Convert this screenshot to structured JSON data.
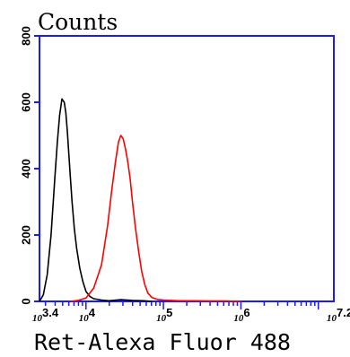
{
  "chart_data": {
    "type": "line",
    "title": "Counts",
    "xlabel": "Ret-Alexa Fluor 488",
    "ylabel": "",
    "x_scale": "log10",
    "xlim": [
      3.4,
      7.2
    ],
    "ylim": [
      0,
      800
    ],
    "yticks": [
      0,
      200,
      400,
      600,
      800
    ],
    "ytick_labels": [
      "0",
      "200",
      "400",
      "600",
      "800"
    ],
    "xtick_labels": [
      {
        "base": "10",
        "exp": "3.4",
        "value": 3.4
      },
      {
        "base": "10",
        "exp": "4",
        "value": 4
      },
      {
        "base": "10",
        "exp": "5",
        "value": 5
      },
      {
        "base": "10",
        "exp": "6",
        "value": 6
      },
      {
        "base": "10",
        "exp": "7.2",
        "value": 7.2
      }
    ],
    "axis_color": "#1a1aff",
    "series": [
      {
        "color": "#000000",
        "x": [
          3.4,
          3.45,
          3.5,
          3.55,
          3.6,
          3.63,
          3.66,
          3.69,
          3.72,
          3.74,
          3.76,
          3.78,
          3.8,
          3.82,
          3.85,
          3.88,
          3.92,
          3.96,
          4.0,
          4.05,
          4.1,
          4.2,
          4.3,
          4.45,
          4.6,
          4.75,
          4.85
        ],
        "y": [
          0,
          20,
          80,
          200,
          380,
          480,
          560,
          610,
          600,
          570,
          510,
          440,
          370,
          300,
          220,
          160,
          100,
          60,
          30,
          15,
          8,
          4,
          2,
          5,
          3,
          2,
          0
        ]
      },
      {
        "color": "#ff0000",
        "x": [
          3.8,
          3.9,
          4.0,
          4.1,
          4.2,
          4.28,
          4.33,
          4.38,
          4.42,
          4.45,
          4.48,
          4.51,
          4.54,
          4.57,
          4.6,
          4.64,
          4.68,
          4.72,
          4.76,
          4.8,
          4.85,
          4.92,
          5.0,
          5.1,
          5.2,
          5.4,
          5.6,
          5.8,
          6.0
        ],
        "y": [
          0,
          3,
          10,
          40,
          110,
          230,
          330,
          420,
          480,
          500,
          490,
          460,
          420,
          370,
          300,
          220,
          150,
          90,
          50,
          25,
          12,
          6,
          4,
          3,
          2,
          2,
          1,
          1,
          0
        ]
      }
    ]
  }
}
